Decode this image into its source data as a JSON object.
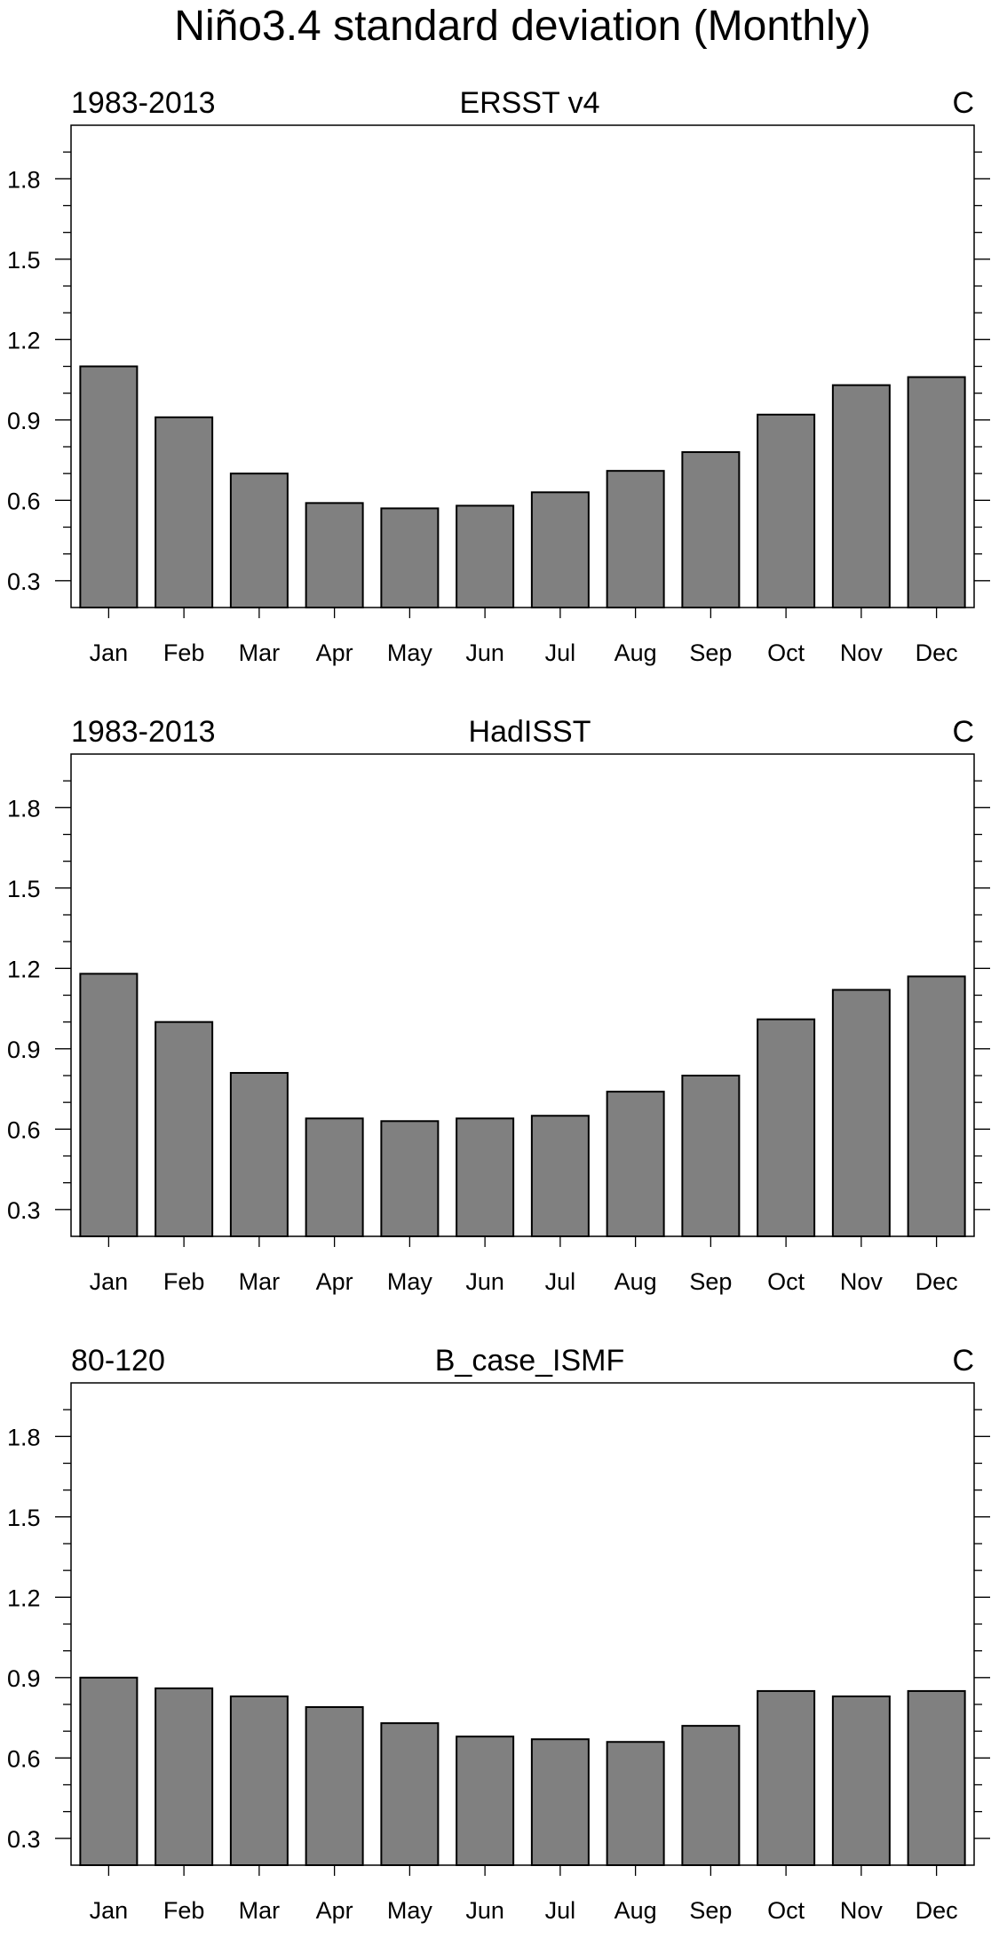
{
  "figure": {
    "title": "Niño3.4 standard deviation (Monthly)"
  },
  "colors": {
    "bar_fill": "#808080",
    "bar_stroke": "#000000",
    "frame": "#000000",
    "background": "#ffffff"
  },
  "chart_data": [
    {
      "type": "bar",
      "title": "ERSST v4",
      "left_label": "1983-2013",
      "right_label": "C",
      "categories": [
        "Jan",
        "Feb",
        "Mar",
        "Apr",
        "May",
        "Jun",
        "Jul",
        "Aug",
        "Sep",
        "Oct",
        "Nov",
        "Dec"
      ],
      "values": [
        1.1,
        0.91,
        0.7,
        0.59,
        0.57,
        0.58,
        0.63,
        0.71,
        0.78,
        0.92,
        1.03,
        1.06
      ],
      "ylim": [
        0.2,
        2.0
      ],
      "yticks": [
        0.3,
        0.6,
        0.9,
        1.2,
        1.5,
        1.8
      ],
      "ytick_labels": [
        "0.3",
        "0.6",
        "0.9",
        "1.2",
        "1.5",
        "1.8"
      ],
      "xlabel": "",
      "ylabel": ""
    },
    {
      "type": "bar",
      "title": "HadISST",
      "left_label": "1983-2013",
      "right_label": "C",
      "categories": [
        "Jan",
        "Feb",
        "Mar",
        "Apr",
        "May",
        "Jun",
        "Jul",
        "Aug",
        "Sep",
        "Oct",
        "Nov",
        "Dec"
      ],
      "values": [
        1.18,
        1.0,
        0.81,
        0.64,
        0.63,
        0.64,
        0.65,
        0.74,
        0.8,
        1.01,
        1.12,
        1.17
      ],
      "ylim": [
        0.2,
        2.0
      ],
      "yticks": [
        0.3,
        0.6,
        0.9,
        1.2,
        1.5,
        1.8
      ],
      "ytick_labels": [
        "0.3",
        "0.6",
        "0.9",
        "1.2",
        "1.5",
        "1.8"
      ],
      "xlabel": "",
      "ylabel": ""
    },
    {
      "type": "bar",
      "title": "B_case_ISMF",
      "left_label": "80-120",
      "right_label": "C",
      "categories": [
        "Jan",
        "Feb",
        "Mar",
        "Apr",
        "May",
        "Jun",
        "Jul",
        "Aug",
        "Sep",
        "Oct",
        "Nov",
        "Dec"
      ],
      "values": [
        0.9,
        0.86,
        0.83,
        0.79,
        0.73,
        0.68,
        0.67,
        0.66,
        0.72,
        0.85,
        0.83,
        0.85
      ],
      "ylim": [
        0.2,
        2.0
      ],
      "yticks": [
        0.3,
        0.6,
        0.9,
        1.2,
        1.5,
        1.8
      ],
      "ytick_labels": [
        "0.3",
        "0.6",
        "0.9",
        "1.2",
        "1.5",
        "1.8"
      ],
      "xlabel": "",
      "ylabel": ""
    }
  ]
}
